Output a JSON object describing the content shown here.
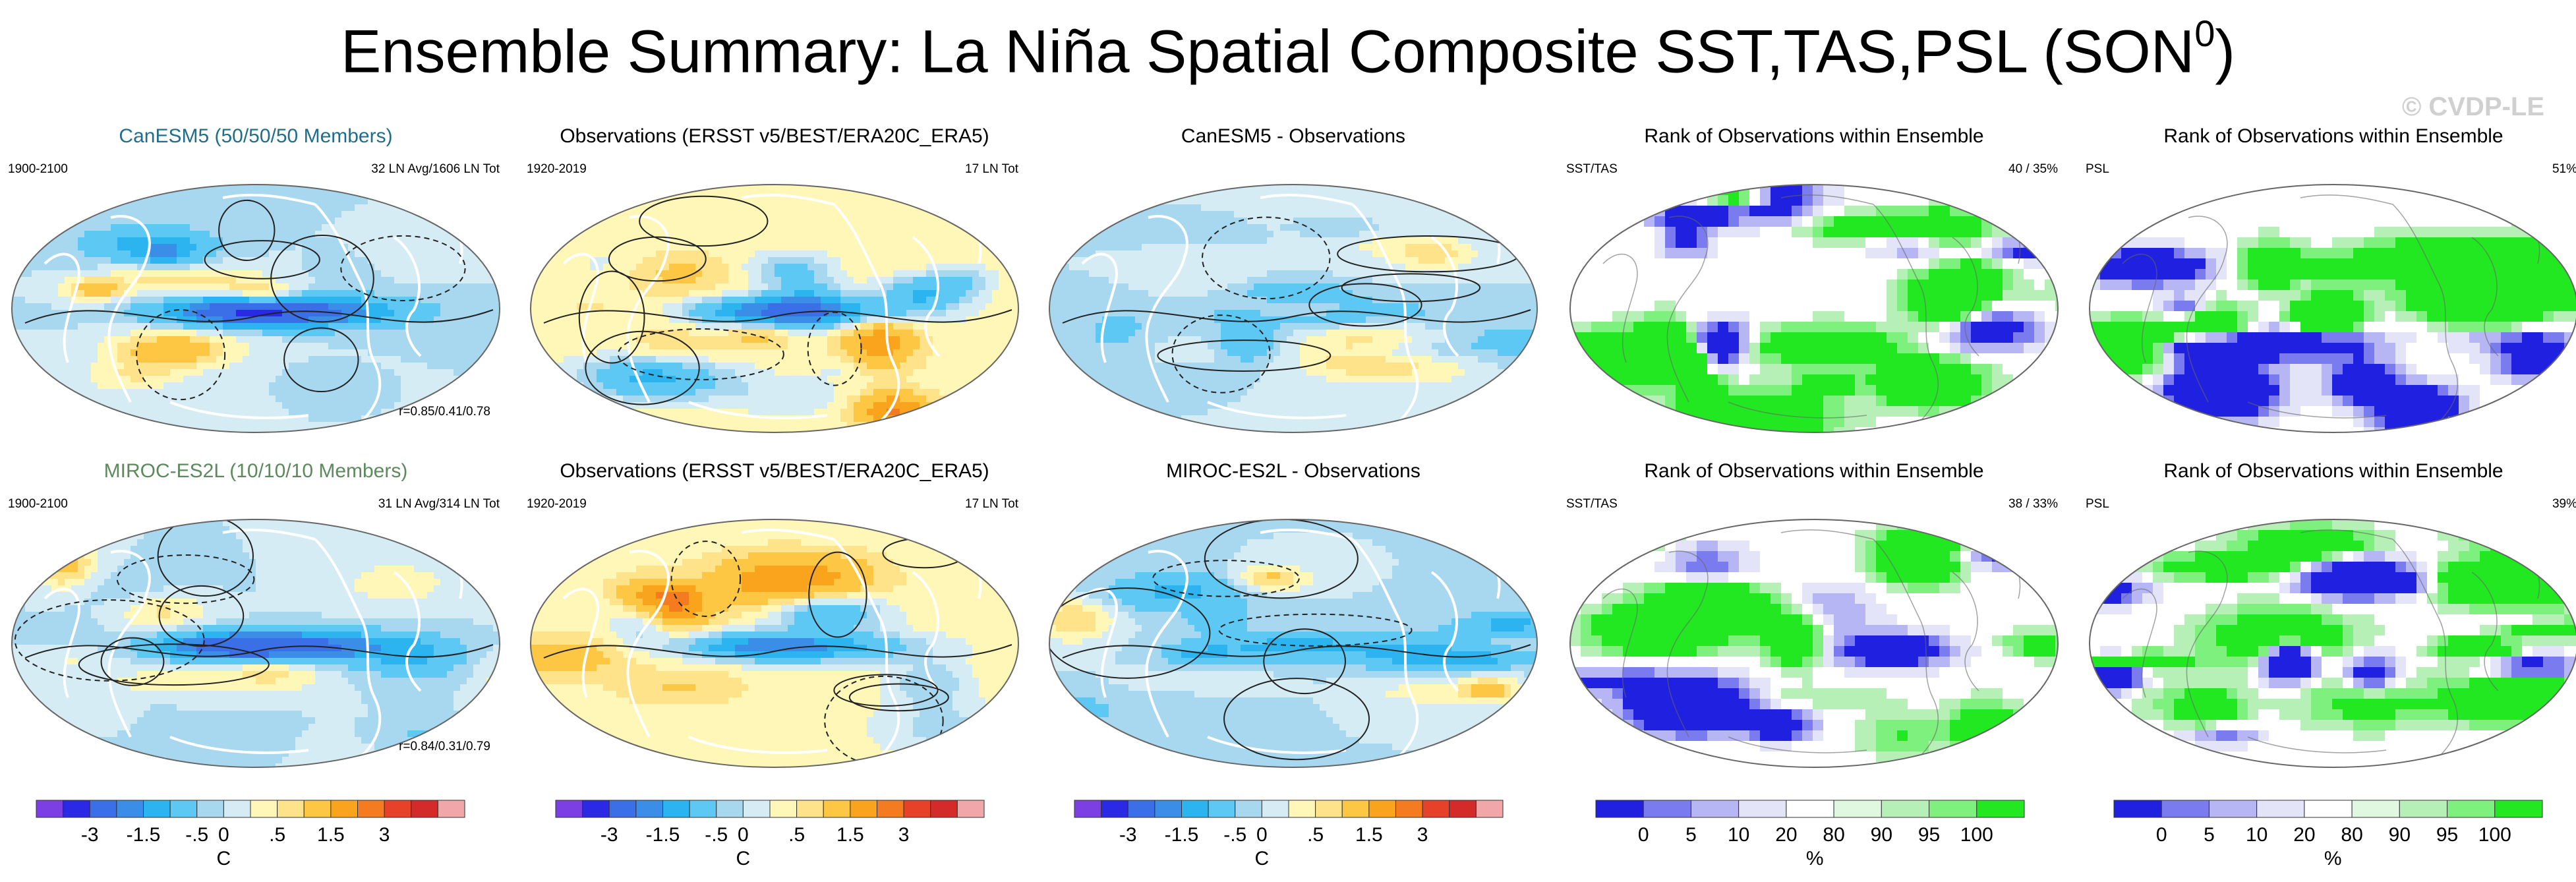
{
  "title": "Ensemble Summary: La Niña Spatial Composite SST,TAS,PSL (SON",
  "title_sup": "0",
  "title_close": ")",
  "watermark": "© CVDP-LE",
  "rows": [
    [
      {
        "title": "CanESM5 (50/50/50 Members)",
        "title_color": "blue",
        "left": "1900-2100",
        "right": "32 LN Avg/1606 LN Tot",
        "bottom": "r=0.85/0.41/0.78",
        "type": "sst",
        "style": "model1"
      },
      {
        "title": "Observations (ERSST v5/BEST/ERA20C_ERA5)",
        "title_color": "black",
        "left": "1920-2019",
        "right": "17 LN Tot",
        "bottom": "",
        "type": "sst",
        "style": "obs"
      },
      {
        "title": "CanESM5 - Observations",
        "title_color": "black",
        "left": "",
        "right": "",
        "bottom": "",
        "type": "sst",
        "style": "diff1"
      },
      {
        "title": "Rank of Observations within Ensemble",
        "title_color": "black",
        "left": "SST/TAS",
        "right": "40 /  35%",
        "bottom": "",
        "type": "rank",
        "style": "rank1"
      },
      {
        "title": "Rank of Observations within Ensemble",
        "title_color": "black",
        "left": "PSL",
        "right": "51%",
        "bottom": "",
        "type": "rank",
        "style": "rank2"
      }
    ],
    [
      {
        "title": "MIROC-ES2L (10/10/10 Members)",
        "title_color": "green",
        "left": "1900-2100",
        "right": "31 LN Avg/314 LN Tot",
        "bottom": "r=0.84/0.31/0.79",
        "type": "sst",
        "style": "model2"
      },
      {
        "title": "Observations (ERSST v5/BEST/ERA20C_ERA5)",
        "title_color": "black",
        "left": "1920-2019",
        "right": "17 LN Tot",
        "bottom": "",
        "type": "sst",
        "style": "obs"
      },
      {
        "title": "MIROC-ES2L - Observations",
        "title_color": "black",
        "left": "",
        "right": "",
        "bottom": "",
        "type": "sst",
        "style": "diff2"
      },
      {
        "title": "Rank of Observations within Ensemble",
        "title_color": "black",
        "left": "SST/TAS",
        "right": "38 /  33%",
        "bottom": "",
        "type": "rank",
        "style": "rank3"
      },
      {
        "title": "Rank of Observations within Ensemble",
        "title_color": "black",
        "left": "PSL",
        "right": "39%",
        "bottom": "",
        "type": "rank",
        "style": "rank4"
      }
    ]
  ],
  "colorbars": [
    {
      "type": "sst",
      "ticks": [
        "-3",
        "-1.5",
        "-.5",
        "0",
        ".5",
        "1.5",
        "3"
      ],
      "unit": "C"
    },
    {
      "type": "sst",
      "ticks": [
        "-3",
        "-1.5",
        "-.5",
        "0",
        ".5",
        "1.5",
        "3"
      ],
      "unit": "C"
    },
    {
      "type": "sst",
      "ticks": [
        "-3",
        "-1.5",
        "-.5",
        "0",
        ".5",
        "1.5",
        "3"
      ],
      "unit": "C"
    },
    {
      "type": "rank",
      "ticks": [
        "0",
        "5",
        "10",
        "20",
        "80",
        "90",
        "95",
        "100"
      ],
      "unit": "%"
    },
    {
      "type": "rank",
      "ticks": [
        "0",
        "5",
        "10",
        "20",
        "80",
        "90",
        "95",
        "100"
      ],
      "unit": "%"
    }
  ],
  "chart_data": {
    "type": "heatmap",
    "title": "Ensemble Summary: La Niña Spatial Composite SST,TAS,PSL (SON0)",
    "sst_levels": [
      -4,
      -3,
      -2,
      -1.5,
      -1,
      -0.5,
      -0.25,
      0,
      0.25,
      0.5,
      1,
      1.5,
      2,
      3,
      4
    ],
    "sst_colors": [
      "#7b3fe4",
      "#2929e6",
      "#3b6fe8",
      "#3a8ee8",
      "#2cb4f0",
      "#5dc8f4",
      "#a8d8ef",
      "#d6ecf5",
      "#fff7b8",
      "#ffe38a",
      "#fdc743",
      "#f9a41c",
      "#f47b20",
      "#e8412a",
      "#d42a2a",
      "#f1a7a7"
    ],
    "rank_levels": [
      0,
      5,
      10,
      20,
      80,
      90,
      95,
      100
    ],
    "rank_colors": [
      "#2020e0",
      "#7b7bf0",
      "#b6b6f5",
      "#e4e4f8",
      "#ffffff",
      "#e0f8e0",
      "#b7f0b7",
      "#7ef07e",
      "#22e822"
    ],
    "panels": [
      "CanESM5 (50/50/50 Members)",
      "Observations (ERSST v5/BEST/ERA20C_ERA5)",
      "CanESM5 - Observations",
      "Rank of Observations within Ensemble (SST/TAS)",
      "Rank of Observations within Ensemble (PSL)",
      "MIROC-ES2L (10/10/10 Members)",
      "Observations (ERSST v5/BEST/ERA20C_ERA5)",
      "MIROC-ES2L - Observations",
      "Rank of Observations within Ensemble (SST/TAS)",
      "Rank of Observations within Ensemble (PSL)"
    ]
  }
}
